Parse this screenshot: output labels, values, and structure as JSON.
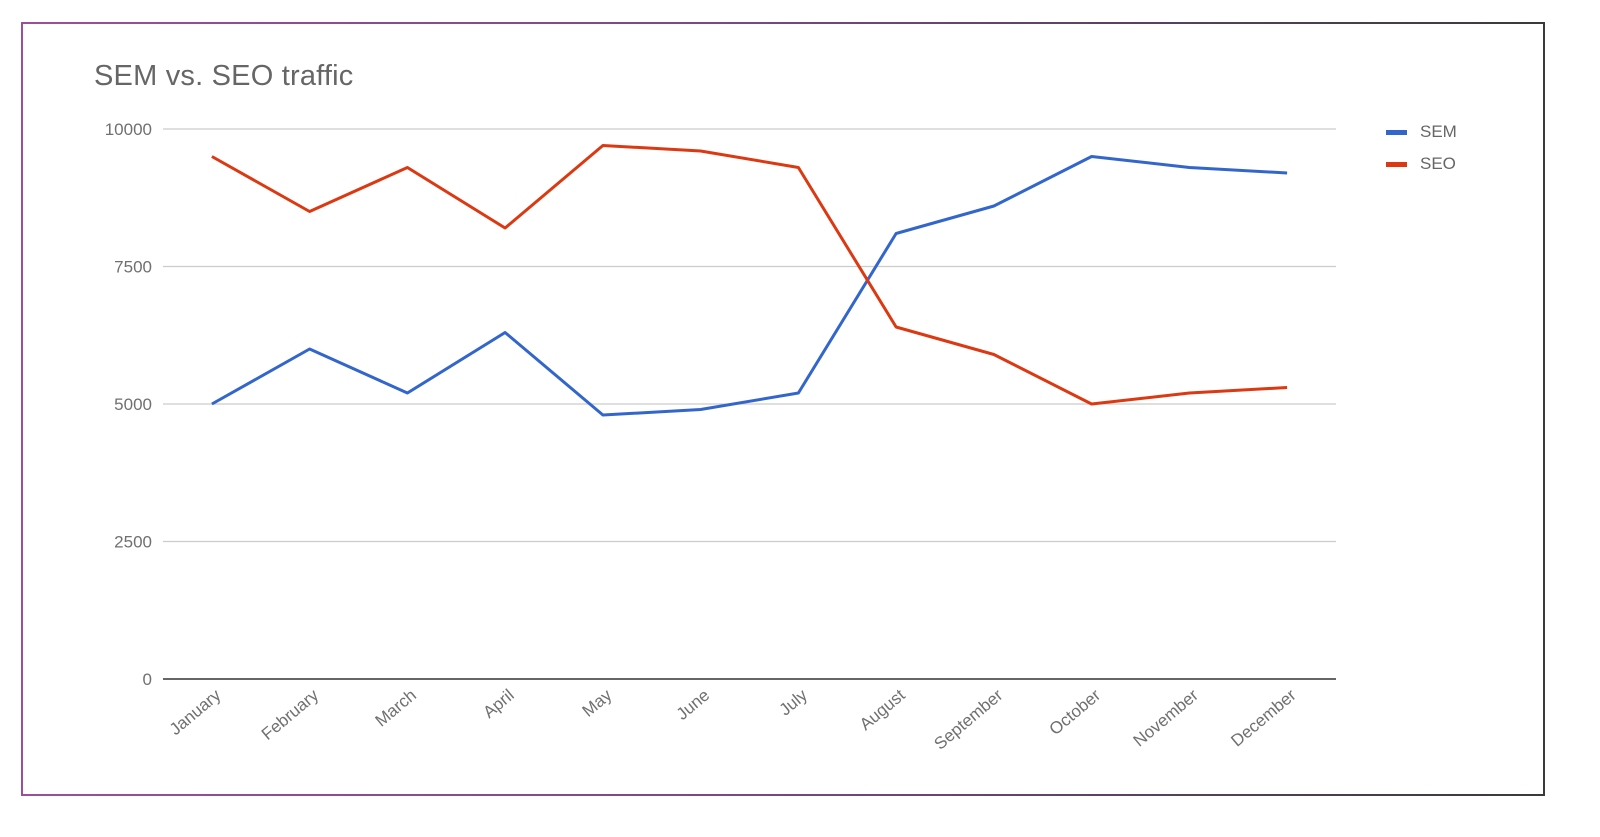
{
  "chart_data": {
    "type": "line",
    "title": "SEM vs. SEO traffic",
    "xlabel": "",
    "ylabel": "",
    "categories": [
      "January",
      "February",
      "March",
      "April",
      "May",
      "June",
      "July",
      "August",
      "September",
      "October",
      "November",
      "December"
    ],
    "series": [
      {
        "name": "SEM",
        "color": "#3366cc",
        "values": [
          5000,
          6000,
          5200,
          6300,
          4800,
          4900,
          5200,
          8100,
          8600,
          9500,
          9300,
          9200
        ]
      },
      {
        "name": "SEO",
        "color": "#dc3912",
        "values": [
          9500,
          8500,
          9300,
          8200,
          9700,
          9600,
          9300,
          6400,
          5900,
          5000,
          5200,
          5300
        ]
      }
    ],
    "ylim": [
      0,
      10000
    ],
    "yticks": [
      0,
      2500,
      5000,
      7500,
      10000
    ],
    "grid": true,
    "legend_position": "right"
  },
  "title": "SEM vs. SEO traffic",
  "legend": {
    "items": [
      {
        "label": "SEM",
        "color": "#3366cc"
      },
      {
        "label": "SEO",
        "color": "#dc3912"
      }
    ]
  },
  "colors": {
    "grid": "#cccccc",
    "axis": "#333333",
    "text": "#666666"
  }
}
